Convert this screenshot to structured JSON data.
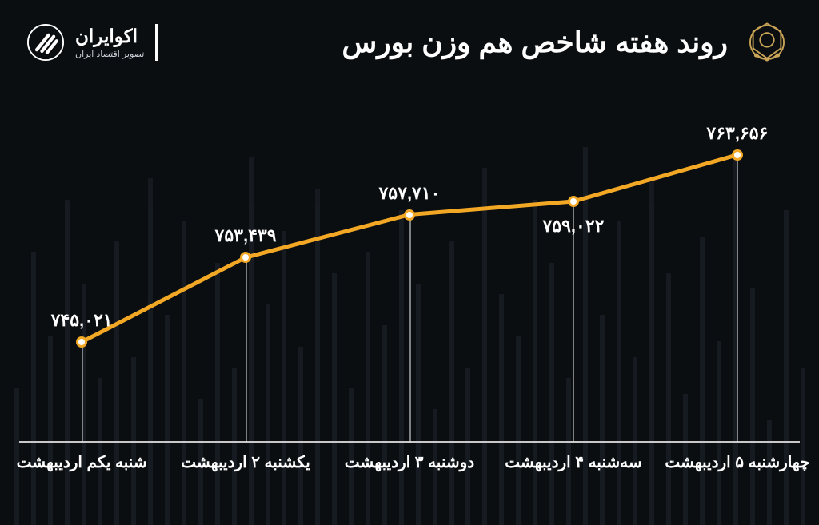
{
  "header": {
    "title": "روند هفته شاخص هم وزن بورس",
    "brand_name": "اکوایران",
    "brand_tagline": "تصویر اقتصاد ایران"
  },
  "chart": {
    "type": "line",
    "background_color": "#0b0e11",
    "line_color": "#f2a825",
    "line_width": 5,
    "marker_fill": "#ffffff",
    "marker_border": "#f2a825",
    "marker_size": 14,
    "grid_color": "rgba(220,220,220,0.55)",
    "axis_color": "#dddddd",
    "text_color": "#ffffff",
    "value_fontsize": 22,
    "xlabel_fontsize": 20,
    "ymin": 735000,
    "ymax": 770000,
    "points": [
      {
        "x_label": "شنبه یکم اردیبهشت",
        "value": 745021,
        "value_label": "۷۴۵,۰۲۱",
        "label_pos": "above"
      },
      {
        "x_label": "یکشنبه ۲ اردیبهشت",
        "value": 753439,
        "value_label": "۷۵۳,۴۳۹",
        "label_pos": "above"
      },
      {
        "x_label": "دوشنبه ۳ اردیبهشت",
        "value": 757710,
        "value_label": "۷۵۷,۷۱۰",
        "label_pos": "above"
      },
      {
        "x_label": "سه‌شنبه ۴ اردیبهشت",
        "value": 759022,
        "value_label": "۷۵۹,۰۲۲",
        "label_pos": "below"
      },
      {
        "x_label": "چهارشنبه ۵ اردیبهشت",
        "value": 763656,
        "value_label": "۷۶۳,۶۵۶",
        "label_pos": "above"
      }
    ],
    "x_positions_pct": [
      8,
      29,
      50,
      71,
      92
    ]
  },
  "logos": {
    "seo_color": "#caa557",
    "eco_mark_color": "#ffffff"
  }
}
